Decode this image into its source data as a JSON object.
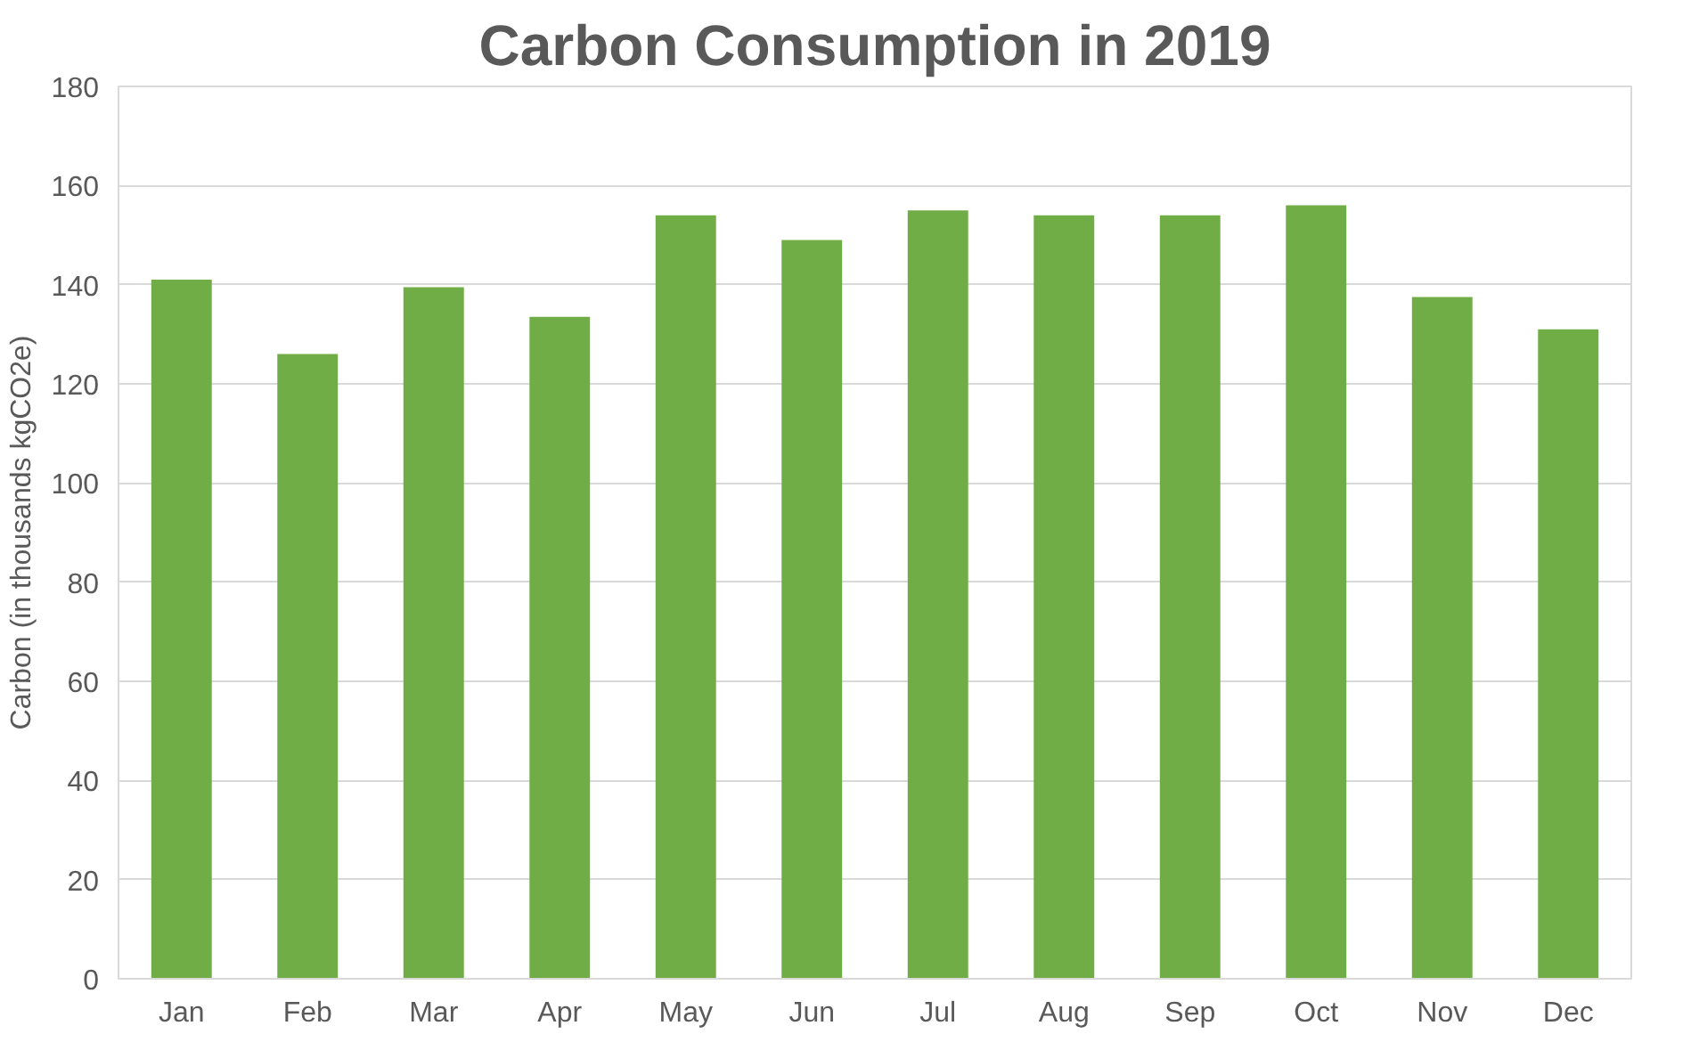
{
  "chart_data": {
    "type": "bar",
    "title": "Carbon Consumption in 2019",
    "ylabel": "Carbon (in thousands kgCO2e)",
    "categories": [
      "Jan",
      "Feb",
      "Mar",
      "Apr",
      "May",
      "Jun",
      "Jul",
      "Aug",
      "Sep",
      "Oct",
      "Nov",
      "Dec"
    ],
    "values": [
      141,
      126,
      139.5,
      133.5,
      154,
      149,
      155,
      154,
      154,
      156,
      137.5,
      131
    ],
    "color": "#70ad47",
    "ylim": [
      0,
      180
    ],
    "yticks": [
      0,
      20,
      40,
      60,
      80,
      100,
      120,
      140,
      160,
      180
    ],
    "grid": "y"
  }
}
